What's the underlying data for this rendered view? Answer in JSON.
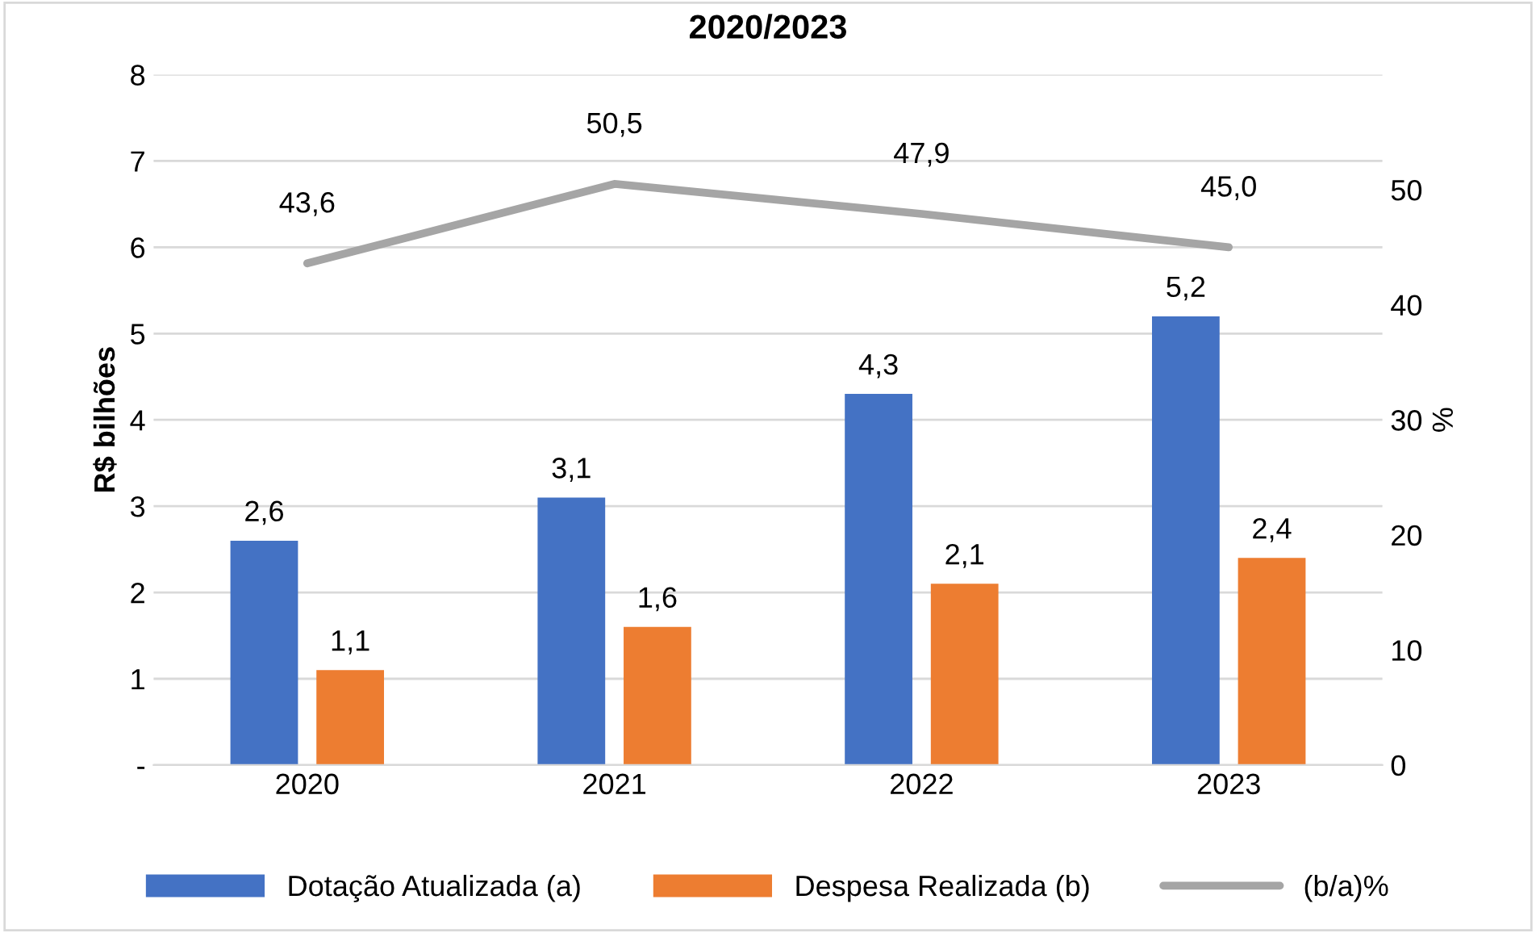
{
  "chart_data": {
    "type": "bar",
    "title": "2020/2023",
    "ylabel": "R$ bilhões",
    "y2label": "%",
    "categories": [
      "2020",
      "2021",
      "2022",
      "2023"
    ],
    "series": [
      {
        "name": "Dotação Atualizada (a)",
        "color": "#4472c4",
        "values": [
          2.6,
          3.1,
          4.3,
          5.2
        ],
        "value_labels": [
          "2,6",
          "3,1",
          "4,3",
          "5,2"
        ]
      },
      {
        "name": "Despesa Realizada (b)",
        "color": "#ed7d31",
        "values": [
          1.1,
          1.6,
          2.1,
          2.4
        ],
        "value_labels": [
          "1,1",
          "1,6",
          "2,1",
          "2,4"
        ]
      },
      {
        "name": "(b/a)%",
        "type": "line",
        "axis": "y2",
        "color": "#a5a5a5",
        "values": [
          43.6,
          50.5,
          47.9,
          45.0
        ],
        "value_labels": [
          "43,6",
          "50,5",
          "47,9",
          "45,0"
        ]
      }
    ],
    "ylim": [
      0,
      8
    ],
    "yticks": [
      {
        "value": 0,
        "label": "-"
      },
      1,
      2,
      3,
      4,
      5,
      6,
      7,
      8
    ],
    "y2lim": [
      0,
      60
    ],
    "y2ticks": [
      0,
      10,
      20,
      30,
      40,
      50
    ],
    "grid": "y",
    "legend": "bottom",
    "marker": "none"
  }
}
